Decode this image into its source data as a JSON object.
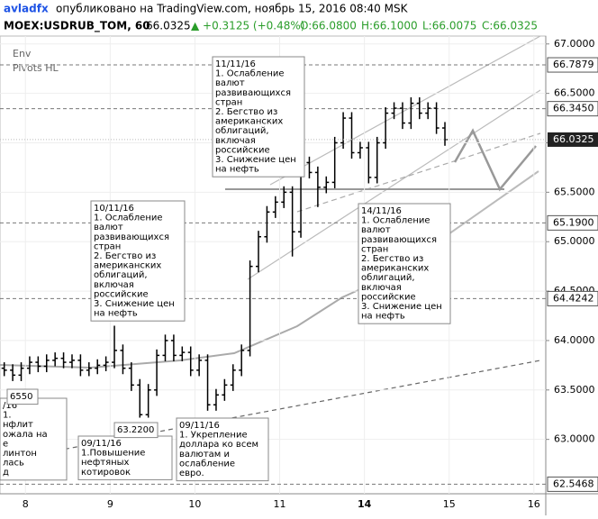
{
  "header": {
    "author": "avladfx",
    "published": "опубликовано на TradingView.com, ноябрь 15, 2016 08:40 MSK",
    "symbol": "MOEX:USDRUB_TOM, 60",
    "last": "66.0325",
    "change": "▲ +0.3125 (+0.48%)",
    "open": "O:66.0800",
    "high": "H:66.1000",
    "low": "L:66.0075",
    "close": "C:66.0325"
  },
  "indicators": [
    "Env",
    "Pivots HL"
  ],
  "chart_data": {
    "type": "ohlc",
    "x_labels": [
      "8",
      "9",
      "10",
      "11",
      "14",
      "15",
      "16"
    ],
    "xlim": [
      -0.3,
      6.14
    ],
    "ylim": [
      62.45,
      67.08
    ],
    "yticks": [
      {
        "value": 63,
        "label": "63.0000"
      },
      {
        "value": 63.5,
        "label": "63.5000"
      },
      {
        "value": 64,
        "label": "64.0000"
      },
      {
        "value": 64.5,
        "label": "64.5000"
      },
      {
        "value": 65,
        "label": "65.0000"
      },
      {
        "value": 65.5,
        "label": "65.5000"
      },
      {
        "value": 66,
        "label": "66.0000"
      },
      {
        "value": 66.5,
        "label": "66.5000"
      },
      {
        "value": 67,
        "label": "67.0000"
      }
    ],
    "price_levels": [
      66.7879,
      {
        "value": 66.345,
        "label": "66.3450"
      },
      {
        "value": 65.19,
        "label": "65.1900"
      },
      64.4242,
      62.5468
    ],
    "last_price": 66.0325,
    "x": [
      -0.25,
      -0.15,
      -0.05,
      0.05,
      0.15,
      0.25,
      0.35,
      0.45,
      0.55,
      0.65,
      0.75,
      0.85,
      0.95,
      1.05,
      1.15,
      1.25,
      1.35,
      1.45,
      1.55,
      1.65,
      1.75,
      1.85,
      1.95,
      2.05,
      2.15,
      2.25,
      2.35,
      2.45,
      2.55,
      2.65,
      2.75,
      2.85,
      2.95,
      3.05,
      3.15,
      3.25,
      3.35,
      3.45,
      3.55,
      3.65,
      3.75,
      3.85,
      3.95,
      4.05,
      4.15,
      4.25,
      4.35,
      4.45,
      4.55,
      4.65,
      4.75,
      4.85,
      4.95
    ],
    "open": [
      63.72,
      63.7,
      63.65,
      63.72,
      63.78,
      63.74,
      63.8,
      63.82,
      63.78,
      63.8,
      63.7,
      63.72,
      63.75,
      63.78,
      63.9,
      63.72,
      63.55,
      63.25,
      63.5,
      63.85,
      64,
      63.85,
      63.88,
      63.7,
      63.8,
      63.35,
      63.45,
      63.55,
      63.7,
      63.9,
      64.75,
      65.05,
      65.3,
      65.4,
      65.5,
      65.1,
      65.8,
      65.7,
      65.55,
      65.6,
      66,
      66.25,
      65.9,
      65.95,
      65.65,
      66,
      66.3,
      66.35,
      66.2,
      66.4,
      66.3,
      66.35,
      66.15
    ],
    "high": [
      63.78,
      63.76,
      63.78,
      63.84,
      63.84,
      63.86,
      63.88,
      63.88,
      63.86,
      63.86,
      63.78,
      63.81,
      63.84,
      64.15,
      63.96,
      63.78,
      63.61,
      63.56,
      63.91,
      64.06,
      64.06,
      63.94,
      63.94,
      63.86,
      63.86,
      63.51,
      63.61,
      63.76,
      63.96,
      64.81,
      65.11,
      65.36,
      65.46,
      65.56,
      65.56,
      65.86,
      65.86,
      65.76,
      65.66,
      66.06,
      66.31,
      66.31,
      66.01,
      66.01,
      66.06,
      66.36,
      66.41,
      66.41,
      66.46,
      66.46,
      66.41,
      66.41,
      66.21
    ],
    "low": [
      63.64,
      63.59,
      63.59,
      63.66,
      63.68,
      63.68,
      63.74,
      63.72,
      63.72,
      63.64,
      63.64,
      63.66,
      63.69,
      63.72,
      63.66,
      63.49,
      63.22,
      63.22,
      63.44,
      63.79,
      63.79,
      63.79,
      63.64,
      63.64,
      63.29,
      63.29,
      63.39,
      63.49,
      63.64,
      63.84,
      64.69,
      64.99,
      65.24,
      65.34,
      64.85,
      65.04,
      65.64,
      65.35,
      65.49,
      65.54,
      65.94,
      65.84,
      65.84,
      65.59,
      65.59,
      65.94,
      66.24,
      66.14,
      66.14,
      66.24,
      66.24,
      66.09,
      65.97
    ],
    "close": [
      63.7,
      63.65,
      63.72,
      63.78,
      63.74,
      63.8,
      63.82,
      63.78,
      63.8,
      63.7,
      63.72,
      63.75,
      63.78,
      63.9,
      63.72,
      63.55,
      63.25,
      63.5,
      63.85,
      64,
      63.85,
      63.88,
      63.7,
      63.8,
      63.35,
      63.45,
      63.55,
      63.7,
      63.9,
      64.75,
      65.05,
      65.3,
      65.4,
      65.5,
      65.1,
      65.8,
      65.7,
      65.55,
      65.6,
      66,
      66.25,
      65.9,
      65.95,
      65.65,
      66,
      66.3,
      66.35,
      66.2,
      66.4,
      66.3,
      66.35,
      66.15,
      66.0325
    ],
    "annotations": [
      {
        "lines": [
          "11/11/16",
          "1. Ослабление",
          "валют",
          "развивающихся",
          "стран",
          "2. Бегство из",
          "американских",
          "облигаций,",
          "включая",
          "российские",
          "3. Снижение цен",
          "на нефть"
        ]
      },
      {
        "lines": [
          "10/11/16",
          "1. Ослабление",
          "валют",
          "развивающихся",
          "стран",
          "2. Бегство из",
          "американских",
          "облигаций,",
          "включая",
          "российские",
          "3. Снижение цен",
          "на нефть"
        ]
      },
      {
        "lines": [
          "14/11/16",
          "1. Ослабление",
          "валют",
          "развивающихся",
          "стран",
          "2. Бегство из",
          "американских",
          "облигаций,",
          "включая",
          "российские",
          "3. Снижение цен",
          "на нефть"
        ]
      },
      {
        "lines": [
          "09/11/16",
          "1.Повышение",
          "нефтяных",
          "котировок"
        ]
      },
      {
        "lines": [
          "09/11/16",
          "1. Укрепление",
          "доллара ко всем",
          "валютам и",
          "ослабление",
          "евро."
        ]
      },
      {
        "lines": [
          "/16",
          "1.",
          "нфлит",
          "ожала на",
          "е",
          "линтон",
          "лась",
          "д"
        ]
      },
      {
        "lines": [
          "6550"
        ]
      },
      {
        "lines": [
          "63.2200"
        ]
      }
    ]
  }
}
